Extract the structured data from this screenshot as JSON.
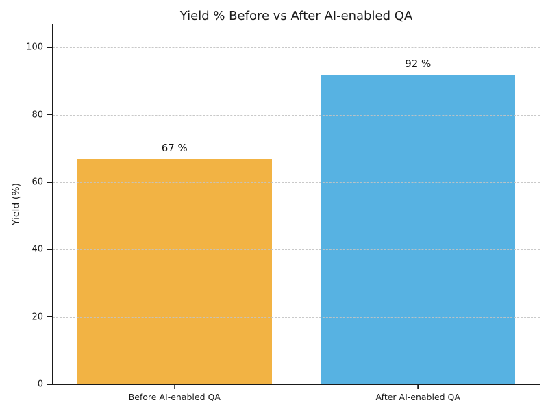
{
  "chart_data": {
    "type": "bar",
    "title": "Yield % Before vs After AI-enabled QA",
    "xlabel": "",
    "ylabel": "Yield (%)",
    "categories": [
      "Before AI-enabled QA",
      "After AI-enabled QA"
    ],
    "values": [
      67,
      92
    ],
    "value_labels": [
      "67 %",
      "92 %"
    ],
    "bar_colors": [
      "#F2B344",
      "#57B2E2"
    ],
    "ylim": [
      0,
      107
    ],
    "yticks": [
      0,
      20,
      40,
      60,
      80,
      100
    ],
    "grid": "horizontal-dashed-over-bars",
    "grid_color": "#c3c3c3",
    "legend": "none",
    "bar_width_fraction": 0.8,
    "text_color": "#1a1a1a",
    "background": "#ffffff"
  }
}
